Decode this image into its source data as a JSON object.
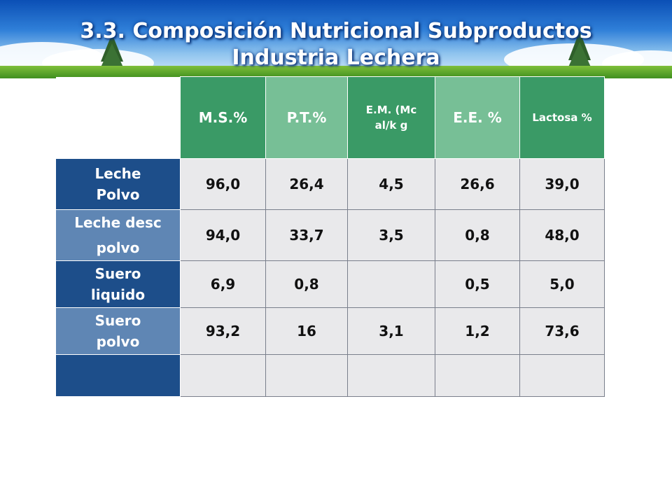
{
  "title_line1": "3.3. Composición Nutricional Subproductos",
  "title_line2": "Industria Lechera",
  "colors": {
    "header_dark": "#3a9a66",
    "header_light": "#77bf96",
    "row_dark": "#1d4e8a",
    "row_light": "#5f86b4",
    "cell": "#e9e9eb"
  },
  "table": {
    "columns": [
      "M.S.%",
      "P.T.%",
      "E.M. (Mcal/k g",
      "E.E. %",
      "Lactosa %"
    ],
    "rows": [
      {
        "label": "Leche Polvo",
        "values": [
          "96,0",
          "26,4",
          "4,5",
          "26,6",
          "39,0"
        ]
      },
      {
        "label": "Leche desc polvo",
        "values": [
          "94,0",
          "33,7",
          "3,5",
          "0,8",
          "48,0"
        ]
      },
      {
        "label": "Suero liquido",
        "values": [
          "6,9",
          "0,8",
          "",
          "0,5",
          "5,0"
        ]
      },
      {
        "label": "Suero polvo",
        "values": [
          "93,2",
          "16",
          "3,1",
          "1,2",
          "73,6"
        ]
      },
      {
        "label": "",
        "values": [
          "",
          "",
          "",
          "",
          ""
        ]
      }
    ]
  }
}
